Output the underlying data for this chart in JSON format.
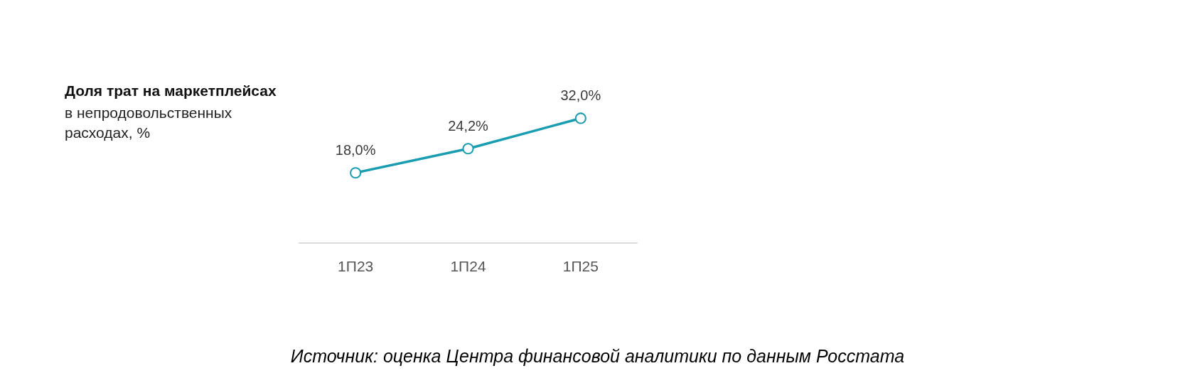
{
  "chart_data": {
    "type": "line",
    "title": "Доля трат на маркетплейсах",
    "subtitle": "в непродовольственных расходах, %",
    "categories": [
      "1П23",
      "1П24",
      "1П25"
    ],
    "series": [
      {
        "color": "#1a9db0",
        "values": [
          18.0,
          24.2,
          32.0
        ],
        "value_labels": [
          "18,0%",
          "24,2%",
          "32,0%"
        ]
      }
    ],
    "tick_labels": "x",
    "marker": "circle",
    "line_style": "solid",
    "annotations": [
      "Источник: оценка Центра финансовой аналитики по данным Росстата"
    ]
  }
}
